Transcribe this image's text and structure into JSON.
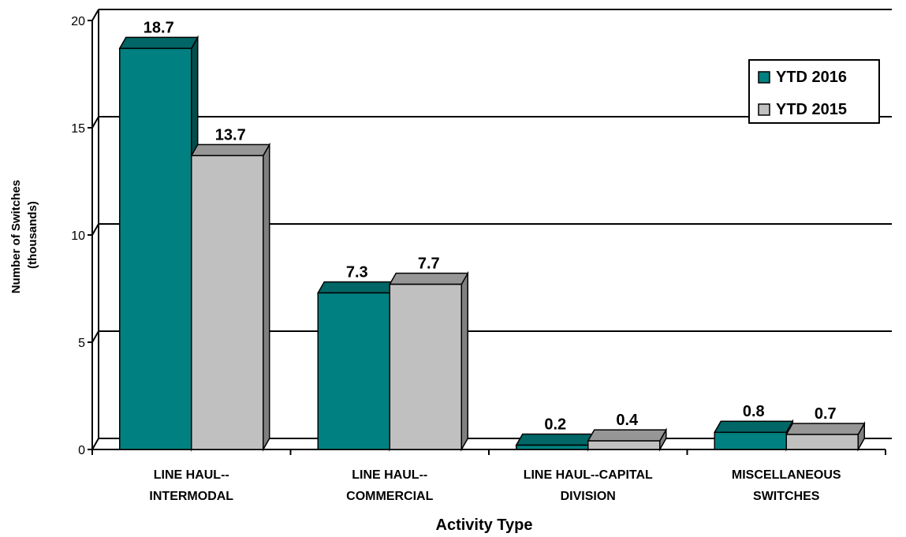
{
  "chart_data": {
    "type": "bar",
    "title": "",
    "xlabel": "Activity Type",
    "ylabel_lines": [
      "Number of Switches",
      "(thousands)"
    ],
    "ylim": [
      0,
      20
    ],
    "yticks": [
      0,
      5,
      10,
      15,
      20
    ],
    "grid": true,
    "legend_position": "top-right",
    "categories": [
      [
        "LINE HAUL--",
        "INTERMODAL"
      ],
      [
        "LINE HAUL--",
        "COMMERCIAL"
      ],
      [
        "LINE HAUL--CAPITAL",
        "DIVISION"
      ],
      [
        "MISCELLANEOUS",
        "SWITCHES"
      ]
    ],
    "series": [
      {
        "name": "YTD 2016",
        "values": [
          18.7,
          7.3,
          0.2,
          0.8
        ],
        "labels": [
          "18.7",
          "7.3",
          "0.2",
          "0.8"
        ],
        "color": "#008080",
        "top_color": "#006666",
        "side_color": "#004d4d"
      },
      {
        "name": "YTD 2015",
        "values": [
          13.7,
          7.7,
          0.4,
          0.7
        ],
        "labels": [
          "13.7",
          "7.7",
          "0.4",
          "0.7"
        ],
        "color": "#c0c0c0",
        "top_color": "#969696",
        "side_color": "#808080"
      }
    ]
  }
}
